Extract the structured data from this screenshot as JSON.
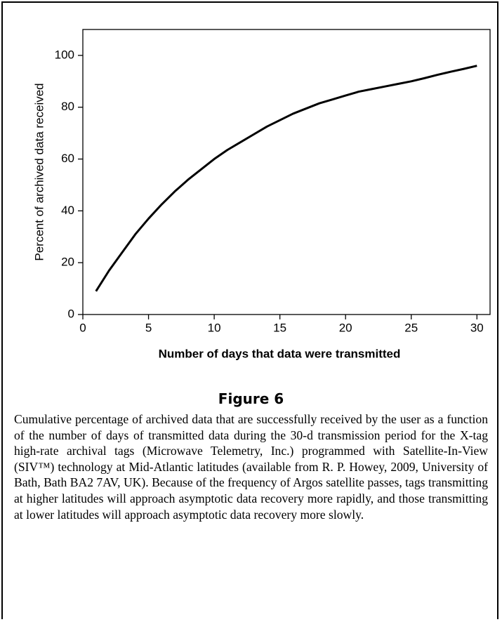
{
  "chart_data": {
    "type": "line",
    "x_label": "Number of days that data were transmitted",
    "y_label": "Percent of archived data received",
    "x": [
      1,
      2,
      3,
      4,
      5,
      6,
      7,
      8,
      9,
      10,
      11,
      12,
      13,
      14,
      15,
      16,
      17,
      18,
      19,
      20,
      21,
      22,
      23,
      24,
      25,
      26,
      27,
      28,
      29,
      30
    ],
    "series": [
      {
        "color": "#000000",
        "values": [
          9,
          17,
          24,
          31,
          37,
          42.5,
          47.5,
          52,
          56,
          60,
          63.5,
          66.5,
          69.5,
          72.5,
          75,
          77.5,
          79.5,
          81.5,
          83,
          84.5,
          86,
          87,
          88,
          89,
          90,
          91.2,
          92.5,
          93.7,
          94.8,
          96
        ]
      }
    ],
    "xlim": [
      0,
      31
    ],
    "xticks": [
      0,
      5,
      10,
      15,
      20,
      25,
      30
    ],
    "ylim": [
      0,
      110
    ],
    "yticks": [
      0,
      20,
      40,
      60,
      80,
      100
    ]
  },
  "figure": {
    "title": "Figure 6",
    "caption": "Cumulative percentage of archived data that are successfully received by the user as a function of the number of days of transmitted data during the 30-d transmission period for the X-tag high-rate archival tags (Microwave Telemetry, Inc.) programmed with Satellite-In-View (SIV™) technology at Mid-Atlantic latitudes (available from R. P. Howey, 2009, University of Bath, Bath BA2 7AV, UK). Because of the frequency of Argos satellite passes, tags transmitting at higher latitudes will approach asymptotic data recovery more rapidly, and those transmitting at lower latitudes will approach asymptotic data recovery more slowly."
  }
}
